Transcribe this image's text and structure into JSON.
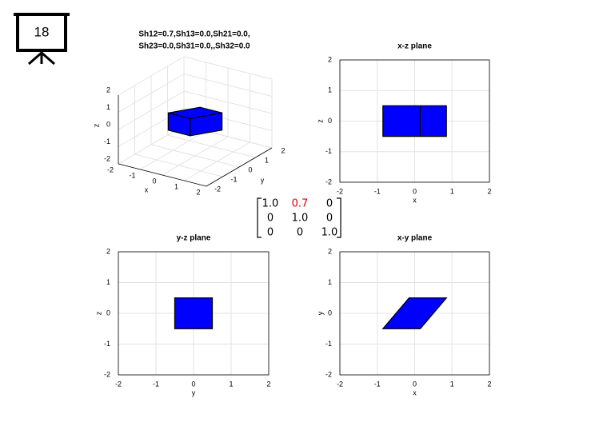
{
  "slide_number": "18",
  "matrix": {
    "rows": [
      [
        "1.0",
        "0.7",
        "0"
      ],
      [
        "0",
        "1.0",
        "0"
      ],
      [
        "0",
        "0",
        "1.0"
      ]
    ],
    "highlight": {
      "row": 0,
      "col": 1,
      "color": "#e00000"
    }
  },
  "chart_data": [
    {
      "type": "polygon3d",
      "title": [
        "Sh12=0.7,Sh13=0.0,Sh21=0.0,",
        "Sh23=0.0,Sh31=0.0,,Sh32=0.0"
      ],
      "xlabel": "x",
      "ylabel": "y",
      "zlabel": "z",
      "xlim": [
        -2,
        2
      ],
      "ylim": [
        -2,
        2
      ],
      "zlim": [
        -2,
        2
      ],
      "xticks": [
        -2,
        -1,
        0,
        1,
        2
      ],
      "yticks": [
        -2,
        -1,
        0,
        1,
        2
      ],
      "zticks": [
        -2,
        -1,
        0,
        1,
        2
      ],
      "grid": true,
      "color": "#0000ff",
      "polygons": [
        {
          "x": [
            -0.85,
            0.15,
            0.15,
            -0.85
          ],
          "y": [
            -0.5,
            -0.5,
            -0.5,
            -0.5
          ],
          "z": [
            -0.5,
            -0.5,
            0.5,
            0.5
          ]
        },
        {
          "x": [
            0.15,
            0.85,
            0.85,
            0.15
          ],
          "y": [
            -0.5,
            0.5,
            0.5,
            -0.5
          ],
          "z": [
            -0.5,
            -0.5,
            0.5,
            0.5
          ]
        },
        {
          "x": [
            -0.85,
            0.15,
            0.85,
            -0.15
          ],
          "y": [
            -0.5,
            -0.5,
            0.5,
            0.5
          ],
          "z": [
            0.5,
            0.5,
            0.5,
            0.5
          ]
        }
      ]
    },
    {
      "type": "polygon",
      "title": "x-z plane",
      "xlabel": "x",
      "ylabel": "z",
      "xlim": [
        -2,
        2
      ],
      "ylim": [
        -2,
        2
      ],
      "xticks": [
        -2,
        -1,
        0,
        1,
        2
      ],
      "yticks": [
        -2,
        -1,
        0,
        1,
        2
      ],
      "grid": true,
      "color": "#0000ff",
      "polygons": [
        {
          "x": [
            -0.85,
            0.85,
            0.85,
            -0.85
          ],
          "y": [
            -0.5,
            -0.5,
            0.5,
            0.5
          ]
        },
        {
          "x": [
            0.15,
            0.15
          ],
          "y": [
            -0.5,
            0.5
          ]
        }
      ]
    },
    {
      "type": "polygon",
      "title": "y-z plane",
      "xlabel": "y",
      "ylabel": "z",
      "xlim": [
        -2,
        2
      ],
      "ylim": [
        -2,
        2
      ],
      "xticks": [
        -2,
        -1,
        0,
        1,
        2
      ],
      "yticks": [
        -2,
        -1,
        0,
        1,
        2
      ],
      "grid": true,
      "color": "#0000ff",
      "polygons": [
        {
          "x": [
            -0.5,
            0.5,
            0.5,
            -0.5
          ],
          "y": [
            -0.5,
            -0.5,
            0.5,
            0.5
          ]
        }
      ]
    },
    {
      "type": "polygon",
      "title": "x-y plane",
      "xlabel": "x",
      "ylabel": "y",
      "xlim": [
        -2,
        2
      ],
      "ylim": [
        -2,
        2
      ],
      "xticks": [
        -2,
        -1,
        0,
        1,
        2
      ],
      "yticks": [
        -2,
        -1,
        0,
        1,
        2
      ],
      "grid": true,
      "color": "#0000ff",
      "polygons": [
        {
          "x": [
            -0.85,
            0.15,
            0.85,
            -0.15
          ],
          "y": [
            -0.5,
            -0.5,
            0.5,
            0.5
          ]
        }
      ]
    }
  ]
}
